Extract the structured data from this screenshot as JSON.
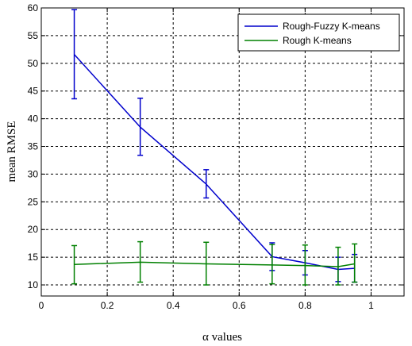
{
  "chart_data": {
    "type": "line",
    "xlabel": "α values",
    "ylabel": "mean RMSE",
    "xlim": [
      0,
      1.1
    ],
    "ylim": [
      8,
      60
    ],
    "xticks": [
      0,
      0.2,
      0.4,
      0.6,
      0.8,
      1
    ],
    "xtick_labels": [
      "0",
      "0.2",
      "0.4",
      "0.6",
      "0.8",
      "1"
    ],
    "yticks": [
      10,
      15,
      20,
      25,
      30,
      35,
      40,
      45,
      50,
      55,
      60
    ],
    "ytick_labels": [
      "10",
      "15",
      "20",
      "25",
      "30",
      "35",
      "40",
      "45",
      "50",
      "55",
      "60"
    ],
    "grid": true,
    "legend_position": "top-right",
    "x": [
      0.1,
      0.3,
      0.5,
      0.7,
      0.8,
      0.9,
      0.95
    ],
    "series": [
      {
        "name": "Rough-Fuzzy K-means",
        "color": "#0000cc",
        "values": [
          51.6,
          38.5,
          28.2,
          15.1,
          14.0,
          12.8,
          13.0
        ],
        "err_low": [
          43.6,
          33.4,
          25.7,
          12.6,
          11.8,
          10.6,
          10.5
        ],
        "err_high": [
          59.7,
          43.7,
          30.8,
          17.6,
          16.2,
          15.0,
          15.5
        ]
      },
      {
        "name": "Rough K-means",
        "color": "#008000",
        "values": [
          13.7,
          14.1,
          13.8,
          13.6,
          13.5,
          13.3,
          13.8
        ],
        "err_low": [
          10.2,
          10.5,
          10.0,
          10.2,
          10.0,
          10.0,
          10.5
        ],
        "err_high": [
          17.1,
          17.8,
          17.7,
          17.3,
          17.2,
          16.8,
          17.4
        ]
      }
    ]
  }
}
